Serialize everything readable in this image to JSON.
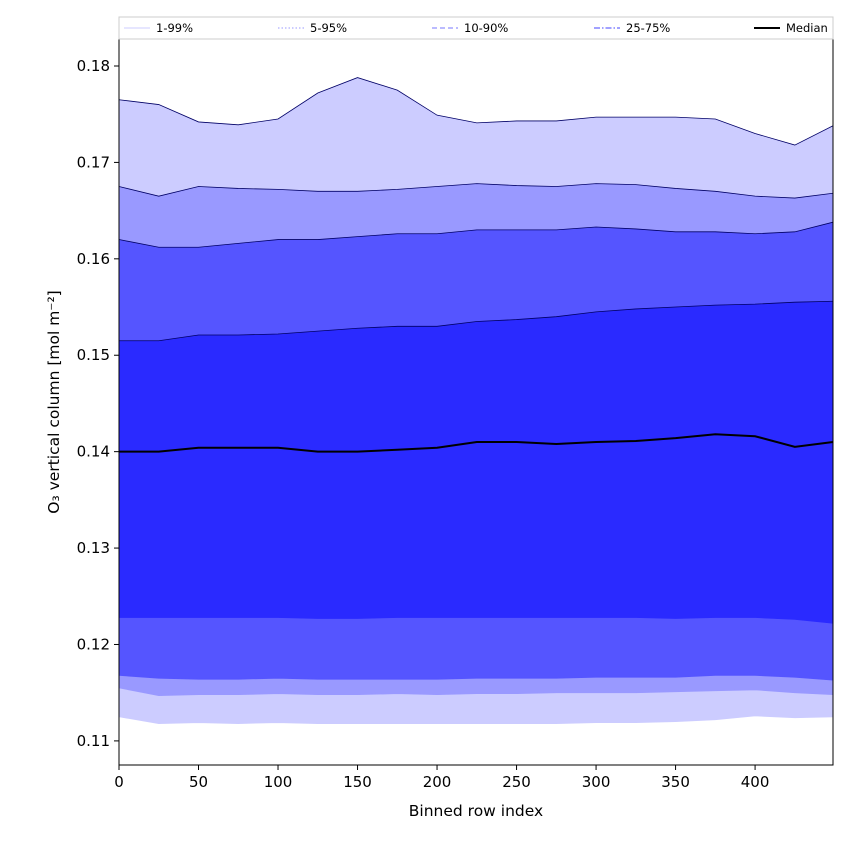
{
  "chart_data": {
    "type": "area",
    "title": "",
    "xlabel": "Binned row index",
    "ylabel": "O₃ vertical column [mol m⁻²]",
    "xlim": [
      0,
      449
    ],
    "ylim": [
      0.1075,
      0.1828
    ],
    "xticks": [
      0,
      50,
      100,
      150,
      200,
      250,
      300,
      350,
      400
    ],
    "yticks": [
      0.11,
      0.12,
      0.13,
      0.14,
      0.15,
      0.16,
      0.17,
      0.18
    ],
    "ytick_labels": [
      "0.11",
      "0.12",
      "0.13",
      "0.14",
      "0.15",
      "0.16",
      "0.17",
      "0.18"
    ],
    "grid": false,
    "legend_position": "top (above plot, single row)",
    "x": [
      0,
      25,
      50,
      75,
      100,
      125,
      150,
      175,
      200,
      225,
      250,
      275,
      300,
      325,
      350,
      375,
      400,
      425,
      449
    ],
    "bands": [
      {
        "name": "1-99%",
        "color": "#ccccff",
        "lower": [
          0.1125,
          0.1118,
          0.1119,
          0.1118,
          0.1119,
          0.1118,
          0.1118,
          0.1118,
          0.1118,
          0.1118,
          0.1118,
          0.1118,
          0.1119,
          0.1119,
          0.112,
          0.1122,
          0.1126,
          0.1124,
          0.1125
        ],
        "upper": [
          0.1765,
          0.176,
          0.1742,
          0.1739,
          0.1745,
          0.1772,
          0.1788,
          0.1775,
          0.1749,
          0.1741,
          0.1743,
          0.1743,
          0.1747,
          0.1747,
          0.1747,
          0.1745,
          0.173,
          0.1718,
          0.1738
        ]
      },
      {
        "name": "5-95%",
        "color": "#9999ff",
        "lower": [
          0.1155,
          0.1147,
          0.1148,
          0.1148,
          0.1149,
          0.1148,
          0.1148,
          0.1149,
          0.1148,
          0.1149,
          0.1149,
          0.115,
          0.115,
          0.115,
          0.1151,
          0.1152,
          0.1153,
          0.115,
          0.1148
        ],
        "upper": [
          0.1675,
          0.1665,
          0.1675,
          0.1673,
          0.1672,
          0.167,
          0.167,
          0.1672,
          0.1675,
          0.1678,
          0.1676,
          0.1675,
          0.1678,
          0.1677,
          0.1673,
          0.167,
          0.1665,
          0.1663,
          0.1668
        ]
      },
      {
        "name": "10-90%",
        "color": "#5555ff",
        "lower": [
          0.1168,
          0.1165,
          0.1164,
          0.1164,
          0.1165,
          0.1164,
          0.1164,
          0.1164,
          0.1164,
          0.1165,
          0.1165,
          0.1165,
          0.1166,
          0.1166,
          0.1166,
          0.1168,
          0.1168,
          0.1166,
          0.1163
        ],
        "upper": [
          0.162,
          0.1612,
          0.1612,
          0.1616,
          0.162,
          0.162,
          0.1623,
          0.1626,
          0.1626,
          0.163,
          0.163,
          0.163,
          0.1633,
          0.1631,
          0.1628,
          0.1628,
          0.1626,
          0.1628,
          0.1638
        ]
      },
      {
        "name": "25-75%",
        "color": "#2a2aff",
        "lower": [
          0.1228,
          0.1228,
          0.1228,
          0.1228,
          0.1228,
          0.1227,
          0.1227,
          0.1228,
          0.1228,
          0.1228,
          0.1228,
          0.1228,
          0.1228,
          0.1228,
          0.1227,
          0.1228,
          0.1228,
          0.1226,
          0.1222
        ],
        "upper": [
          0.1515,
          0.1515,
          0.1521,
          0.1521,
          0.1522,
          0.1525,
          0.1528,
          0.153,
          0.153,
          0.1535,
          0.1537,
          0.154,
          0.1545,
          0.1548,
          0.155,
          0.1552,
          0.1553,
          0.1555,
          0.1556
        ]
      }
    ],
    "median": {
      "name": "Median",
      "color": "#000000",
      "values": [
        0.14,
        0.14,
        0.1404,
        0.1404,
        0.1404,
        0.14,
        0.14,
        0.1402,
        0.1404,
        0.141,
        0.141,
        0.1408,
        0.141,
        0.1411,
        0.1414,
        0.1418,
        0.1416,
        0.1405,
        0.141
      ]
    },
    "legend": [
      {
        "label": "1-99%",
        "style": "solid",
        "color": "#ccccff"
      },
      {
        "label": "5-95%",
        "style": "dotted",
        "color": "#9999ff"
      },
      {
        "label": "10-90%",
        "style": "dashed",
        "color": "#7777ff"
      },
      {
        "label": "25-75%",
        "style": "dashdot",
        "color": "#4444ff"
      },
      {
        "label": "Median",
        "style": "solid",
        "color": "#000000"
      }
    ]
  }
}
